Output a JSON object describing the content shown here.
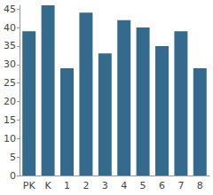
{
  "chart_data": {
    "type": "bar",
    "categories": [
      "PK",
      "K",
      "1",
      "2",
      "3",
      "4",
      "5",
      "6",
      "7",
      "8"
    ],
    "values": [
      39,
      46,
      29,
      44,
      33,
      42,
      40,
      35,
      39,
      29
    ],
    "color": "#356a8c",
    "ylim": [
      0,
      46
    ],
    "yticks": [
      0,
      5,
      10,
      15,
      20,
      25,
      30,
      35,
      40,
      45
    ],
    "grid": false
  }
}
